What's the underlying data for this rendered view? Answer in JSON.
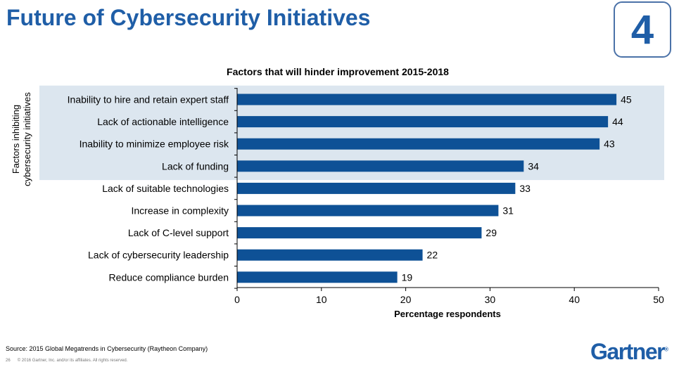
{
  "page": {
    "title": "Future of Cybersecurity Initiatives",
    "badge": "4",
    "source": "Source: 2015 Global Megatrends in Cybersecurity (Raytheon Company)",
    "page_number": "26",
    "copyright": "© 2016 Gartner, Inc. and/or its affiliates. All rights reserved.",
    "logo": "Gartner",
    "logo_mark": "®"
  },
  "colors": {
    "bar": "#0e5196",
    "highlight_band": "#dce6ef",
    "title": "#1f5ea7"
  },
  "chart_data": {
    "type": "bar",
    "orientation": "horizontal",
    "title": "Factors that will hinder improvement 2015-2018",
    "xlabel": "Percentage respondents",
    "ylabel": "Factors inhibiting cybersecurity initiatives",
    "ylabel_lines": [
      "Factors inhibiting",
      "cybersecurity initiatives"
    ],
    "categories": [
      "Inability to hire and retain expert staff",
      "Lack of actionable intelligence",
      "Inability to minimize employee risk",
      "Lack of funding",
      "Lack of suitable technologies",
      "Increase in complexity",
      "Lack of C-level support",
      "Lack of cybersecurity leadership",
      "Reduce compliance burden"
    ],
    "values": [
      45,
      44,
      43,
      34,
      33,
      31,
      29,
      22,
      19
    ],
    "xlim": [
      0,
      50
    ],
    "xticks": [
      0,
      10,
      20,
      30,
      40,
      50
    ],
    "highlighted_categories": 4,
    "grid": false,
    "data_labels": true
  }
}
